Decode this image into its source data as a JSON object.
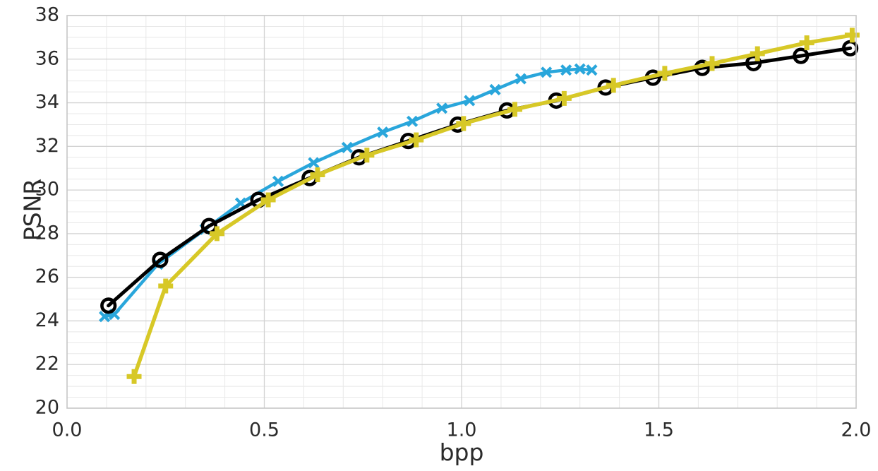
{
  "chart_data": {
    "type": "line",
    "title": "",
    "xlabel": "bpp",
    "ylabel": "PSNR",
    "xlim": [
      0.0,
      2.0
    ],
    "ylim": [
      20,
      38
    ],
    "x_major_ticks": [
      0.0,
      0.5,
      1.0,
      1.5,
      2.0
    ],
    "x_tick_labels": [
      "0.0",
      "0.5",
      "1.0",
      "1.5",
      "2.0"
    ],
    "y_major_ticks": [
      20,
      22,
      24,
      26,
      28,
      30,
      32,
      34,
      36,
      38
    ],
    "y_tick_labels": [
      "20",
      "22",
      "24",
      "26",
      "28",
      "30",
      "32",
      "34",
      "36",
      "38"
    ],
    "x_minor_step": 0.1,
    "y_minor_step": 0.5,
    "grid": "major+minor",
    "legend_position": "none",
    "colors": {
      "blue_series": "#29a6db",
      "black_series": "#000000",
      "yellow_series": "#d7c827",
      "grid_minor": "#e8e8e8",
      "grid_major": "#d2d2d2",
      "spine": "#c6c6c6",
      "text": "#2b2b2b"
    },
    "series": [
      {
        "name": "blue-x-curve",
        "color": "#29a6db",
        "marker": "x",
        "line_width": 4.5,
        "points": [
          [
            0.095,
            24.2
          ],
          [
            0.12,
            24.3
          ],
          [
            0.23,
            26.6
          ],
          [
            0.35,
            28.2
          ],
          [
            0.44,
            29.4
          ],
          [
            0.535,
            30.4
          ],
          [
            0.625,
            31.25
          ],
          [
            0.71,
            31.95
          ],
          [
            0.8,
            32.65
          ],
          [
            0.875,
            33.15
          ],
          [
            0.95,
            33.75
          ],
          [
            1.02,
            34.1
          ],
          [
            1.085,
            34.6
          ],
          [
            1.15,
            35.1
          ],
          [
            1.215,
            35.4
          ],
          [
            1.265,
            35.5
          ],
          [
            1.3,
            35.55
          ],
          [
            1.33,
            35.5
          ]
        ]
      },
      {
        "name": "black-circle-curve",
        "color": "#000000",
        "marker": "o",
        "line_width": 5,
        "points": [
          [
            0.105,
            24.7
          ],
          [
            0.236,
            26.8
          ],
          [
            0.36,
            28.35
          ],
          [
            0.485,
            29.55
          ],
          [
            0.615,
            30.55
          ],
          [
            0.74,
            31.5
          ],
          [
            0.865,
            32.25
          ],
          [
            0.99,
            33.0
          ],
          [
            1.115,
            33.65
          ],
          [
            1.24,
            34.1
          ],
          [
            1.365,
            34.7
          ],
          [
            1.485,
            35.15
          ],
          [
            1.61,
            35.6
          ],
          [
            1.74,
            35.82
          ],
          [
            1.86,
            36.15
          ],
          [
            1.985,
            36.5
          ]
        ]
      },
      {
        "name": "yellow-plus-curve",
        "color": "#d7c827",
        "marker": "+",
        "line_width": 5.5,
        "points": [
          [
            0.17,
            21.45
          ],
          [
            0.25,
            25.6
          ],
          [
            0.38,
            28.0
          ],
          [
            0.51,
            29.55
          ],
          [
            0.635,
            30.7
          ],
          [
            0.76,
            31.6
          ],
          [
            0.885,
            32.3
          ],
          [
            1.005,
            33.05
          ],
          [
            1.135,
            33.7
          ],
          [
            1.26,
            34.2
          ],
          [
            1.385,
            34.8
          ],
          [
            1.515,
            35.35
          ],
          [
            1.635,
            35.8
          ],
          [
            1.75,
            36.25
          ],
          [
            1.875,
            36.75
          ],
          [
            1.99,
            37.1
          ]
        ]
      }
    ]
  }
}
